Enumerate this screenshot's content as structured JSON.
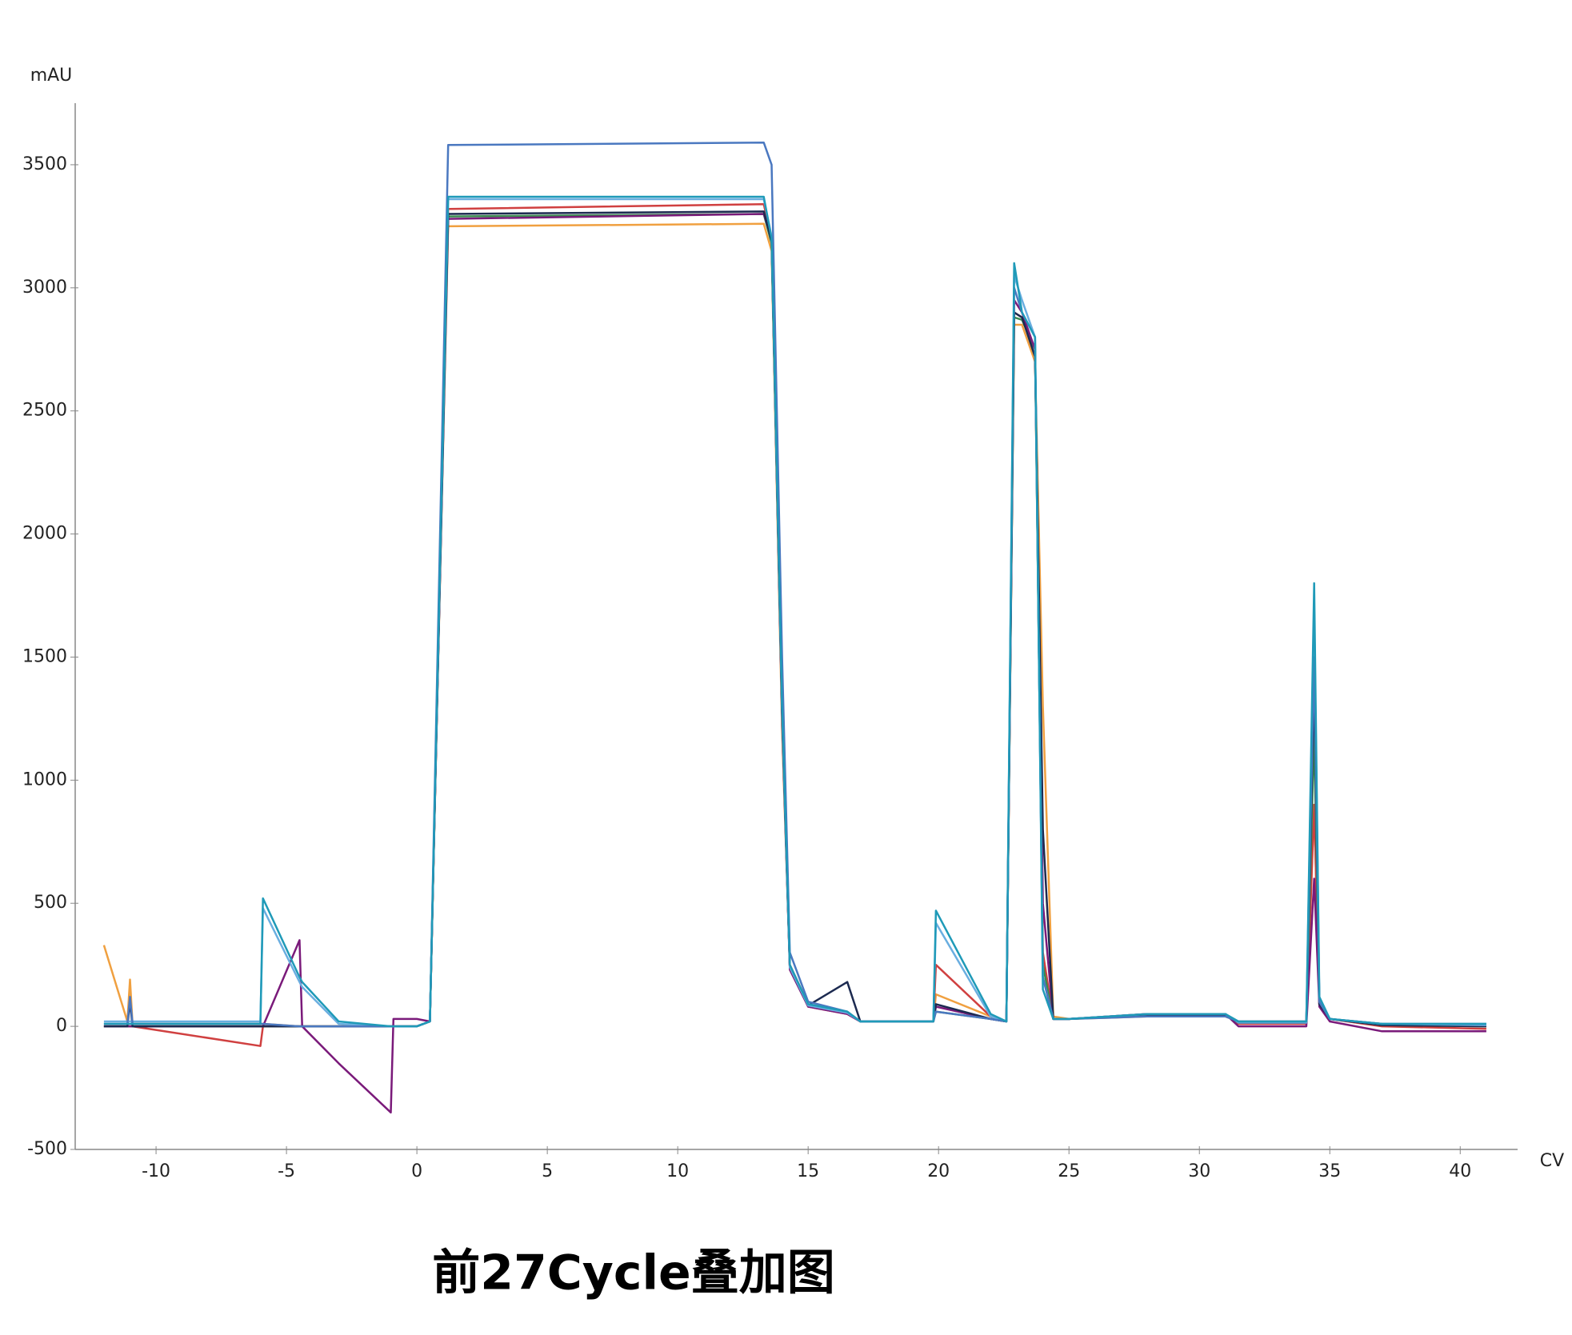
{
  "chart_data": {
    "type": "line",
    "title": "前27Cycle叠加图",
    "y_label": "mAU",
    "x_label": "CV",
    "xlim": [
      -13.1,
      42.2
    ],
    "xticks": [
      -10,
      -5,
      0,
      5,
      10,
      15,
      20,
      25,
      30,
      35,
      40
    ],
    "ylim": [
      -500,
      3750
    ],
    "yticks": [
      -500,
      0,
      500,
      1000,
      1500,
      2000,
      2500,
      3000,
      3500
    ],
    "x": [
      -12,
      -11.1,
      -11,
      -10.9,
      -6,
      -5.9,
      -4.5,
      -4.4,
      -3,
      -1,
      -0.9,
      0,
      0.5,
      1.2,
      13.3,
      13.6,
      14,
      14.3,
      15,
      16.5,
      17,
      19.8,
      19.9,
      22,
      22.6,
      22.9,
      23.2,
      23.7,
      24,
      24.4,
      25,
      28,
      31,
      31.5,
      34.1,
      34.4,
      34.6,
      35,
      37,
      41
    ],
    "series": [
      {
        "color": "#f0a040",
        "values": [
          330,
          20,
          190,
          10,
          10,
          10,
          0,
          0,
          0,
          0,
          0,
          0,
          20,
          3250,
          3260,
          3150,
          1200,
          250,
          90,
          60,
          20,
          20,
          130,
          40,
          20,
          2850,
          2850,
          2700,
          1300,
          40,
          30,
          40,
          40,
          20,
          20,
          900,
          90,
          30,
          10,
          0
        ]
      },
      {
        "color": "#d04040",
        "values": [
          0,
          0,
          0,
          0,
          -80,
          0,
          0,
          0,
          0,
          0,
          0,
          0,
          20,
          3320,
          3340,
          3200,
          1300,
          240,
          80,
          50,
          20,
          20,
          250,
          40,
          20,
          2900,
          2880,
          2750,
          300,
          30,
          30,
          50,
          50,
          10,
          10,
          900,
          90,
          30,
          0,
          -10
        ]
      },
      {
        "color": "#3a8a50",
        "values": [
          0,
          0,
          0,
          0,
          0,
          0,
          0,
          0,
          0,
          0,
          0,
          0,
          20,
          3290,
          3300,
          3180,
          1280,
          240,
          85,
          55,
          20,
          20,
          60,
          30,
          20,
          2880,
          2870,
          2750,
          250,
          30,
          30,
          45,
          45,
          15,
          15,
          1200,
          90,
          30,
          5,
          0
        ]
      },
      {
        "color": "#7a1a7a",
        "values": [
          0,
          0,
          0,
          0,
          0,
          0,
          350,
          0,
          -150,
          -350,
          30,
          30,
          20,
          3280,
          3300,
          3200,
          1250,
          230,
          80,
          50,
          20,
          20,
          80,
          30,
          20,
          2950,
          2900,
          2750,
          500,
          30,
          30,
          50,
          50,
          0,
          0,
          600,
          80,
          20,
          -20,
          -20
        ]
      },
      {
        "color": "#1c2a50",
        "values": [
          0,
          0,
          100,
          0,
          0,
          0,
          0,
          0,
          0,
          0,
          0,
          0,
          20,
          3300,
          3310,
          3190,
          1270,
          240,
          85,
          180,
          20,
          20,
          90,
          30,
          20,
          2900,
          2880,
          2720,
          800,
          30,
          30,
          45,
          45,
          15,
          15,
          1400,
          90,
          30,
          5,
          0
        ]
      },
      {
        "color": "#6aaee0",
        "values": [
          20,
          20,
          20,
          20,
          20,
          480,
          180,
          160,
          10,
          0,
          0,
          0,
          20,
          3360,
          3360,
          3210,
          1290,
          240,
          85,
          55,
          20,
          20,
          420,
          40,
          20,
          3050,
          2950,
          2800,
          200,
          30,
          30,
          50,
          50,
          15,
          15,
          1700,
          100,
          30,
          10,
          5
        ]
      },
      {
        "color": "#4a78c0",
        "values": [
          10,
          10,
          120,
          10,
          10,
          10,
          0,
          0,
          0,
          0,
          0,
          0,
          20,
          3580,
          3590,
          3500,
          1500,
          300,
          100,
          60,
          20,
          20,
          60,
          30,
          20,
          3000,
          2900,
          2800,
          200,
          30,
          30,
          40,
          40,
          20,
          20,
          1500,
          100,
          30,
          10,
          10
        ]
      },
      {
        "color": "#1f9ab8",
        "values": [
          10,
          10,
          10,
          10,
          10,
          520,
          200,
          180,
          20,
          0,
          0,
          0,
          20,
          3370,
          3370,
          3200,
          1300,
          250,
          90,
          60,
          20,
          20,
          470,
          50,
          20,
          3100,
          2900,
          2800,
          150,
          30,
          30,
          50,
          50,
          20,
          20,
          1800,
          120,
          30,
          10,
          10
        ]
      }
    ]
  }
}
